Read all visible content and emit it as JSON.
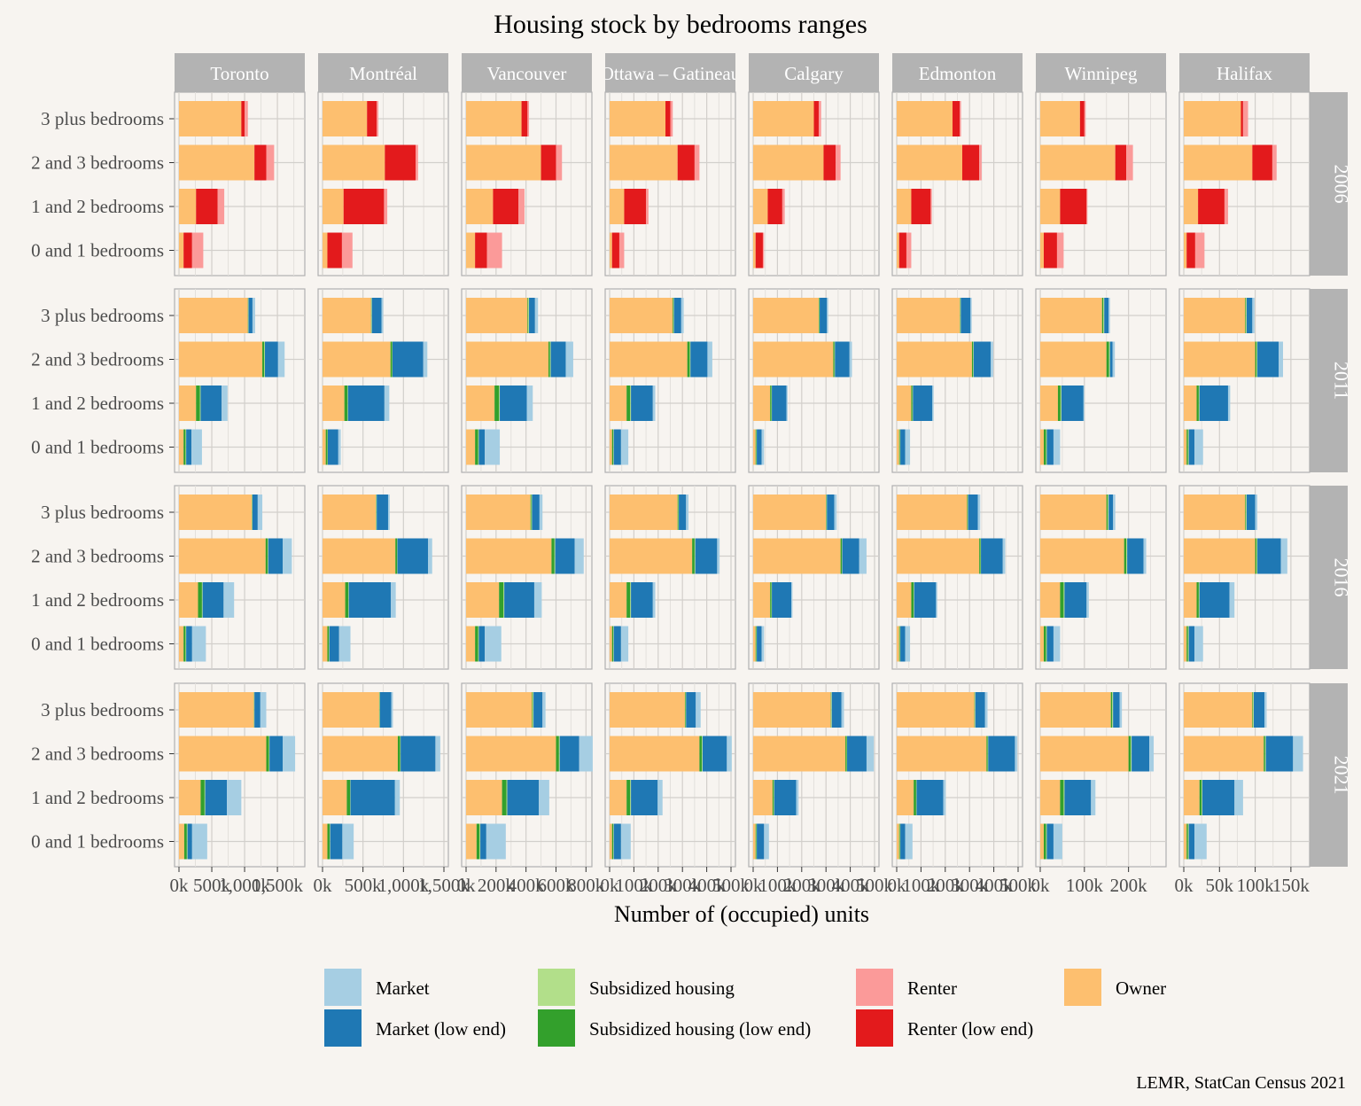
{
  "chart_data": {
    "type": "bar",
    "orientation": "horizontal",
    "stacked": true,
    "faceted": true,
    "title": "Housing stock by bedrooms ranges",
    "xlabel": "Number of (occupied) units",
    "ylabel": "",
    "caption": "LEMR, StatCan Census 2021",
    "legend_position": "bottom",
    "grid": true,
    "categories": [
      "3 plus bedrooms",
      "2 and 3 bedrooms",
      "1 and 2 bedrooms",
      "0 and 1 bedrooms"
    ],
    "series_names": [
      "Owner",
      "Subsidized housing (low end)",
      "Subsidized housing",
      "Market (low end)",
      "Market",
      "Renter (low end)",
      "Renter"
    ],
    "series_colors": {
      "Market": "#a6cee3",
      "Market (low end)": "#1f78b4",
      "Subsidized housing": "#b2df8a",
      "Subsidized housing (low end)": "#33a02c",
      "Renter": "#fb9a99",
      "Renter (low end)": "#e31a1c",
      "Owner": "#fdbf6f"
    },
    "legend_order": [
      "Market",
      "Subsidized housing",
      "Renter",
      "Owner",
      "Market (low end)",
      "Subsidized housing (low end)",
      "Renter (low end)"
    ],
    "years": [
      "2006",
      "2011",
      "2016",
      "2021"
    ],
    "cities": [
      {
        "name": "Toronto",
        "xlim": [
          0,
          1850000
        ],
        "ticks": [
          0,
          500000,
          1000000,
          1500000
        ],
        "tick_labels": [
          "0k",
          "500k",
          "1,000k",
          "1,500k"
        ]
      },
      {
        "name": "Montréal",
        "xlim": [
          0,
          1500000
        ],
        "ticks": [
          0,
          500000,
          1000000,
          1500000
        ],
        "tick_labels": [
          "0k",
          "500k",
          "1,000k",
          "1,500k"
        ]
      },
      {
        "name": "Vancouver",
        "xlim": [
          0,
          810000
        ],
        "ticks": [
          0,
          200000,
          400000,
          600000,
          800000
        ],
        "tick_labels": [
          "0k",
          "200k",
          "400k",
          "600k",
          "800k"
        ]
      },
      {
        "name": "Ottawa – Gatineau",
        "xlim": [
          0,
          500000
        ],
        "ticks": [
          0,
          100000,
          200000,
          300000,
          400000,
          500000
        ],
        "tick_labels": [
          "0k",
          "100k",
          "200k",
          "300k",
          "400k",
          "500k"
        ]
      },
      {
        "name": "Calgary",
        "xlim": [
          0,
          500000
        ],
        "ticks": [
          0,
          100000,
          200000,
          300000,
          400000,
          500000
        ],
        "tick_labels": [
          "0k",
          "100k",
          "200k",
          "300k",
          "400k",
          "500k"
        ]
      },
      {
        "name": "Edmonton",
        "xlim": [
          0,
          500000
        ],
        "ticks": [
          0,
          100000,
          200000,
          300000,
          400000,
          500000
        ],
        "tick_labels": [
          "0k",
          "100k",
          "200k",
          "300k",
          "400k",
          "500k"
        ]
      },
      {
        "name": "Winnipeg",
        "xlim": [
          0,
          275000
        ],
        "ticks": [
          0,
          100000,
          200000
        ],
        "tick_labels": [
          "0k",
          "100k",
          "200k"
        ]
      },
      {
        "name": "Halifax",
        "xlim": [
          0,
          170000
        ],
        "ticks": [
          0,
          50000,
          100000,
          150000
        ],
        "tick_labels": [
          "0k",
          "50k",
          "100k",
          "150k"
        ]
      }
    ],
    "segments_2006": [
      "Owner",
      "Renter (low end)",
      "Renter"
    ],
    "segments_later": [
      "Owner",
      "Subsidized housing (low end)",
      "Subsidized housing",
      "Market (low end)",
      "Market"
    ],
    "panels": {
      "Toronto": {
        "2006": [
          [
            950000,
            50000,
            50000
          ],
          [
            1150000,
            180000,
            120000
          ],
          [
            260000,
            330000,
            100000
          ],
          [
            70000,
            130000,
            170000
          ]
        ],
        "2011": [
          [
            1050000,
            5000,
            5000,
            60000,
            40000
          ],
          [
            1270000,
            30000,
            10000,
            200000,
            100000
          ],
          [
            260000,
            60000,
            10000,
            320000,
            90000
          ],
          [
            70000,
            30000,
            10000,
            80000,
            160000
          ]
        ],
        "2016": [
          [
            1110000,
            5000,
            5000,
            80000,
            70000
          ],
          [
            1320000,
            30000,
            10000,
            220000,
            140000
          ],
          [
            290000,
            60000,
            10000,
            320000,
            160000
          ],
          [
            70000,
            30000,
            10000,
            90000,
            210000
          ]
        ],
        "2021": [
          [
            1140000,
            5000,
            5000,
            90000,
            90000
          ],
          [
            1330000,
            40000,
            10000,
            200000,
            190000
          ],
          [
            330000,
            60000,
            10000,
            330000,
            220000
          ],
          [
            80000,
            40000,
            10000,
            70000,
            230000
          ]
        ]
      },
      "Montréal": {
        "2006": [
          [
            550000,
            120000,
            20000
          ],
          [
            770000,
            380000,
            30000
          ],
          [
            260000,
            500000,
            40000
          ],
          [
            60000,
            180000,
            130000
          ]
        ],
        "2011": [
          [
            600000,
            5000,
            5000,
            120000,
            20000
          ],
          [
            840000,
            20000,
            5000,
            380000,
            50000
          ],
          [
            270000,
            40000,
            5000,
            450000,
            60000
          ],
          [
            40000,
            20000,
            5000,
            130000,
            30000
          ]
        ],
        "2016": [
          [
            660000,
            5000,
            5000,
            140000,
            20000
          ],
          [
            900000,
            20000,
            5000,
            380000,
            50000
          ],
          [
            280000,
            40000,
            5000,
            520000,
            60000
          ],
          [
            60000,
            20000,
            5000,
            120000,
            140000
          ]
        ],
        "2021": [
          [
            700000,
            5000,
            5000,
            140000,
            20000
          ],
          [
            930000,
            30000,
            5000,
            430000,
            60000
          ],
          [
            300000,
            40000,
            5000,
            550000,
            60000
          ],
          [
            60000,
            30000,
            5000,
            150000,
            140000
          ]
        ]
      },
      "Vancouver": {
        "2006": [
          [
            370000,
            40000,
            10000
          ],
          [
            500000,
            100000,
            40000
          ],
          [
            180000,
            170000,
            40000
          ],
          [
            60000,
            80000,
            100000
          ]
        ],
        "2011": [
          [
            410000,
            5000,
            5000,
            40000,
            20000
          ],
          [
            550000,
            10000,
            5000,
            100000,
            50000
          ],
          [
            190000,
            30000,
            5000,
            180000,
            40000
          ],
          [
            60000,
            20000,
            5000,
            40000,
            100000
          ]
        ],
        "2016": [
          [
            430000,
            5000,
            5000,
            50000,
            20000
          ],
          [
            570000,
            20000,
            5000,
            130000,
            60000
          ],
          [
            220000,
            30000,
            5000,
            200000,
            50000
          ],
          [
            60000,
            20000,
            5000,
            40000,
            110000
          ]
        ],
        "2021": [
          [
            440000,
            5000,
            5000,
            60000,
            20000
          ],
          [
            600000,
            20000,
            5000,
            130000,
            90000
          ],
          [
            240000,
            30000,
            5000,
            210000,
            70000
          ],
          [
            70000,
            20000,
            5000,
            40000,
            130000
          ]
        ]
      },
      "Ottawa – Gatineau": {
        "2006": [
          [
            230000,
            20000,
            10000
          ],
          [
            280000,
            70000,
            20000
          ],
          [
            60000,
            90000,
            10000
          ],
          [
            10000,
            30000,
            20000
          ]
        ],
        "2011": [
          [
            260000,
            3000,
            2000,
            30000,
            10000
          ],
          [
            320000,
            10000,
            3000,
            70000,
            20000
          ],
          [
            70000,
            15000,
            3000,
            90000,
            10000
          ],
          [
            10000,
            5000,
            2000,
            30000,
            30000
          ]
        ],
        "2016": [
          [
            280000,
            3000,
            2000,
            30000,
            10000
          ],
          [
            340000,
            10000,
            3000,
            90000,
            10000
          ],
          [
            70000,
            15000,
            3000,
            90000,
            10000
          ],
          [
            10000,
            5000,
            2000,
            30000,
            30000
          ]
        ],
        "2021": [
          [
            310000,
            3000,
            2000,
            40000,
            20000
          ],
          [
            370000,
            10000,
            3000,
            100000,
            20000
          ],
          [
            70000,
            15000,
            3000,
            110000,
            20000
          ],
          [
            10000,
            5000,
            2000,
            30000,
            40000
          ]
        ]
      },
      "Calgary": {
        "2006": [
          [
            250000,
            20000,
            10000
          ],
          [
            290000,
            50000,
            20000
          ],
          [
            60000,
            60000,
            10000
          ],
          [
            10000,
            30000,
            5000
          ]
        ],
        "2011": [
          [
            270000,
            2000,
            2000,
            30000,
            5000
          ],
          [
            330000,
            5000,
            2000,
            60000,
            10000
          ],
          [
            70000,
            5000,
            2000,
            60000,
            5000
          ],
          [
            10000,
            3000,
            2000,
            20000,
            10000
          ]
        ],
        "2016": [
          [
            300000,
            2000,
            2000,
            30000,
            10000
          ],
          [
            360000,
            5000,
            2000,
            70000,
            30000
          ],
          [
            70000,
            5000,
            2000,
            80000,
            5000
          ],
          [
            10000,
            3000,
            2000,
            20000,
            10000
          ]
        ],
        "2021": [
          [
            320000,
            2000,
            2000,
            40000,
            10000
          ],
          [
            380000,
            5000,
            2000,
            80000,
            30000
          ],
          [
            80000,
            5000,
            2000,
            90000,
            10000
          ],
          [
            10000,
            3000,
            2000,
            30000,
            20000
          ]
        ]
      },
      "Edmonton": {
        "2006": [
          [
            230000,
            30000,
            5000
          ],
          [
            270000,
            70000,
            10000
          ],
          [
            60000,
            80000,
            5000
          ],
          [
            10000,
            30000,
            20000
          ]
        ],
        "2011": [
          [
            260000,
            2000,
            2000,
            40000,
            5000
          ],
          [
            310000,
            5000,
            2000,
            70000,
            10000
          ],
          [
            60000,
            5000,
            2000,
            80000,
            5000
          ],
          [
            10000,
            3000,
            2000,
            20000,
            20000
          ]
        ],
        "2016": [
          [
            290000,
            2000,
            2000,
            40000,
            10000
          ],
          [
            340000,
            5000,
            2000,
            90000,
            10000
          ],
          [
            60000,
            10000,
            2000,
            90000,
            5000
          ],
          [
            10000,
            3000,
            2000,
            20000,
            20000
          ]
        ],
        "2021": [
          [
            320000,
            2000,
            2000,
            40000,
            10000
          ],
          [
            370000,
            5000,
            2000,
            110000,
            10000
          ],
          [
            70000,
            10000,
            2000,
            110000,
            10000
          ],
          [
            10000,
            3000,
            2000,
            20000,
            30000
          ]
        ]
      },
      "Winnipeg": {
        "2006": [
          [
            90000,
            10000,
            3000
          ],
          [
            170000,
            25000,
            15000
          ],
          [
            45000,
            60000,
            2000
          ],
          [
            8000,
            30000,
            15000
          ]
        ],
        "2011": [
          [
            140000,
            3000,
            2000,
            10000,
            3000
          ],
          [
            150000,
            6000,
            2000,
            6000,
            5000
          ],
          [
            40000,
            6000,
            2000,
            50000,
            2000
          ],
          [
            8000,
            5000,
            2000,
            15000,
            15000
          ]
        ],
        "2016": [
          [
            150000,
            3000,
            2000,
            10000,
            5000
          ],
          [
            190000,
            5000,
            2000,
            37000,
            6000
          ],
          [
            45000,
            8000,
            2000,
            50000,
            5000
          ],
          [
            8000,
            5000,
            2000,
            15000,
            15000
          ]
        ],
        "2021": [
          [
            160000,
            3000,
            2000,
            15000,
            5000
          ],
          [
            200000,
            5000,
            2000,
            40000,
            10000
          ],
          [
            45000,
            8000,
            2000,
            60000,
            10000
          ],
          [
            8000,
            5000,
            2000,
            15000,
            20000
          ]
        ]
      },
      "Halifax": {
        "2006": [
          [
            80000,
            3000,
            7000
          ],
          [
            96000,
            28000,
            6000
          ],
          [
            20000,
            37000,
            5000
          ],
          [
            4000,
            12000,
            13000
          ]
        ],
        "2011": [
          [
            86000,
            1000,
            1000,
            8000,
            3000
          ],
          [
            100000,
            2000,
            1000,
            30000,
            6000
          ],
          [
            18000,
            3000,
            1000,
            40000,
            3000
          ],
          [
            4000,
            2000,
            1000,
            8000,
            12000
          ]
        ],
        "2016": [
          [
            86000,
            1000,
            1000,
            12000,
            3000
          ],
          [
            100000,
            2000,
            1000,
            33000,
            9000
          ],
          [
            18000,
            3000,
            1000,
            42000,
            7000
          ],
          [
            4000,
            2000,
            1000,
            8000,
            12000
          ]
        ],
        "2021": [
          [
            96000,
            1000,
            1000,
            15000,
            3000
          ],
          [
            112000,
            2000,
            1000,
            38000,
            14000
          ],
          [
            22000,
            3000,
            1000,
            45000,
            12000
          ],
          [
            4000,
            2000,
            1000,
            8000,
            17000
          ]
        ]
      }
    }
  }
}
